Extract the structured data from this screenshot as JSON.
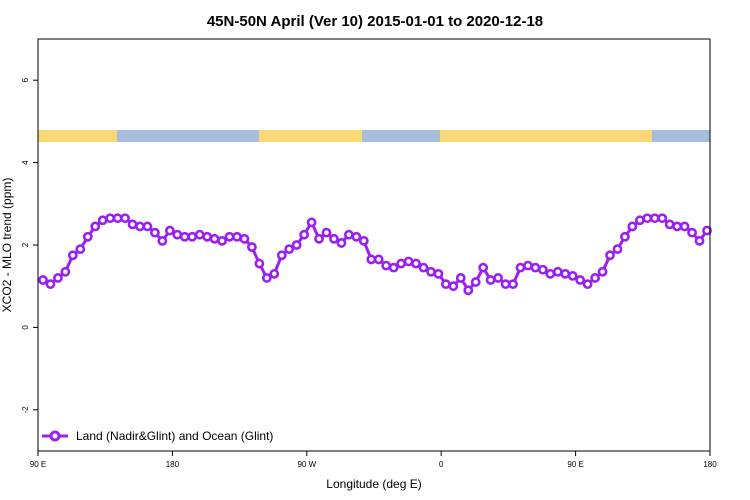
{
  "chart_data": {
    "type": "line",
    "title": "45N-50N April (Ver 10)   2015-01-01 to 2020-12-18",
    "xlabel": "Longitude (deg E)",
    "ylabel": "XCO2 - MLO trend (ppm)",
    "ylim": [
      -3,
      7
    ],
    "yticks": [
      -2,
      0,
      2,
      4,
      6
    ],
    "yticklabels": [
      "-2",
      "0",
      "2",
      "4",
      "6"
    ],
    "xticklabels": [
      "90 E",
      "180",
      "90 W",
      "0",
      "90 E",
      "180"
    ],
    "grid": false,
    "legend_position": "bottom-left",
    "land_band_color": "#f9d977",
    "ocean_band_color": "#a6bddb",
    "series": [
      {
        "name": "Land (Nadir&Glint) and Ocean (Glint)",
        "color": "#9a1ff0",
        "y": [
          1.15,
          1.05,
          1.2,
          1.35,
          1.75,
          1.9,
          2.2,
          2.45,
          2.6,
          2.65,
          2.65,
          2.65,
          2.5,
          2.45,
          2.45,
          2.3,
          2.1,
          2.35,
          2.25,
          2.2,
          2.2,
          2.25,
          2.2,
          2.15,
          2.1,
          2.2,
          2.2,
          2.15,
          1.95,
          1.55,
          1.2,
          1.3,
          1.75,
          1.9,
          2.0,
          2.25,
          2.55,
          2.15,
          2.3,
          2.15,
          2.05,
          2.25,
          2.2,
          2.1,
          1.65,
          1.65,
          1.5,
          1.45,
          1.55,
          1.6,
          1.55,
          1.45,
          1.35,
          1.3,
          1.05,
          1.0,
          1.2,
          0.9,
          1.1,
          1.45,
          1.15,
          1.2,
          1.05,
          1.05,
          1.45,
          1.5,
          1.45,
          1.4,
          1.3,
          1.35,
          1.3,
          1.25,
          1.15,
          1.05,
          1.2,
          1.35,
          1.75,
          1.9,
          2.2,
          2.45,
          2.6,
          2.65,
          2.65,
          2.65,
          2.5,
          2.45,
          2.45,
          2.3,
          2.1,
          2.35
        ]
      }
    ]
  }
}
